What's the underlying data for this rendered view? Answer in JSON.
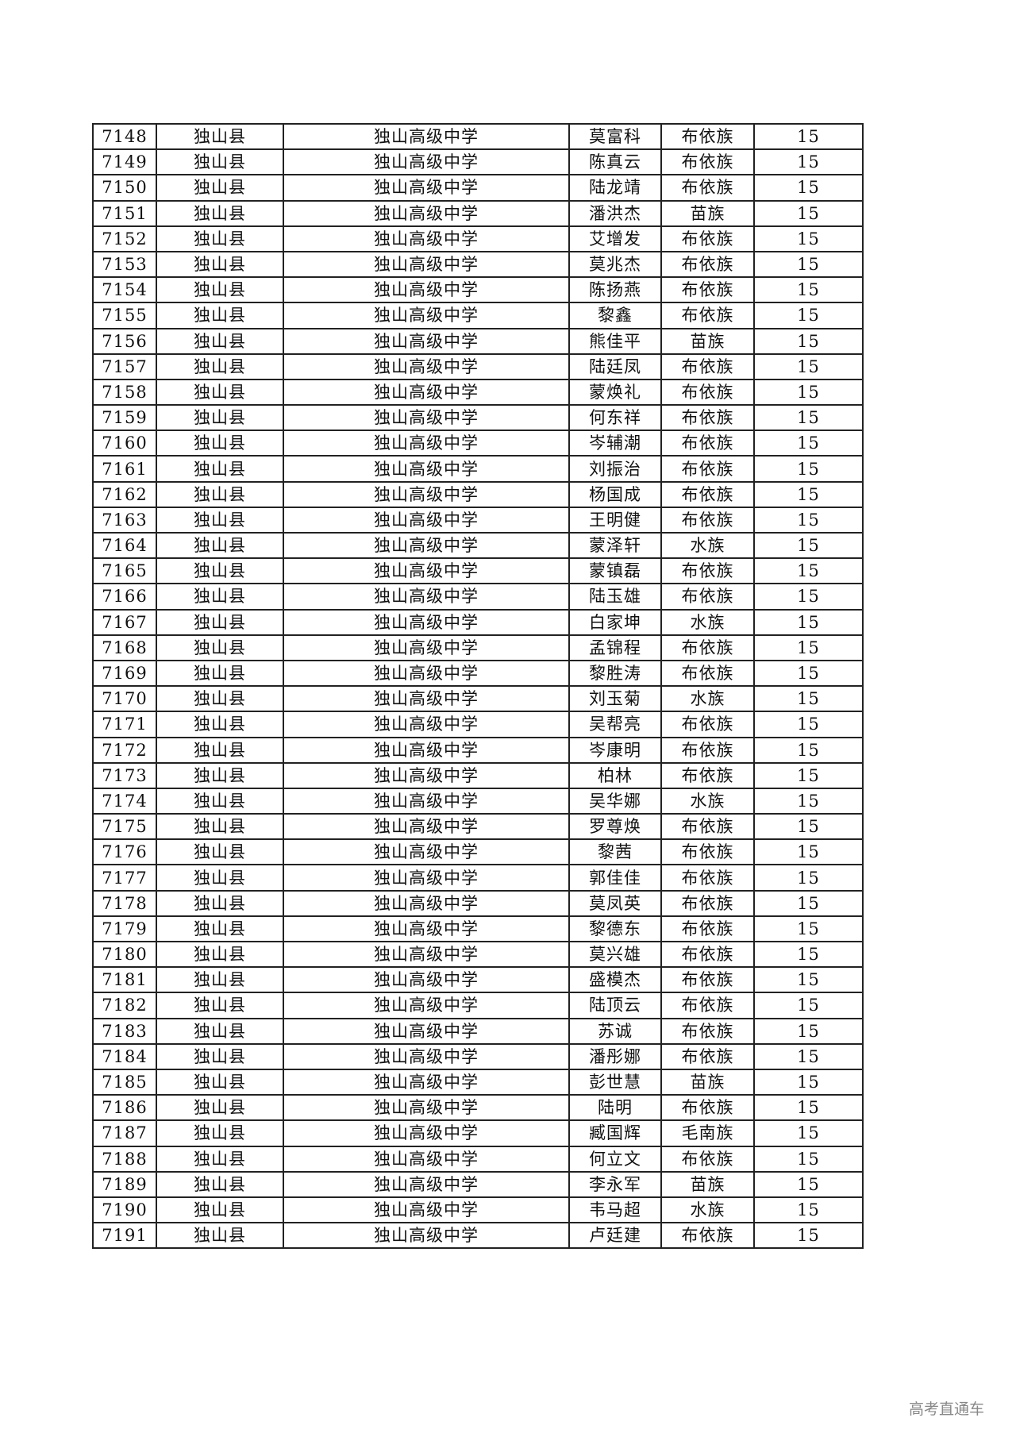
{
  "table": {
    "rows": [
      [
        "7148",
        "独山县",
        "独山高级中学",
        "莫富科",
        "布依族",
        "15"
      ],
      [
        "7149",
        "独山县",
        "独山高级中学",
        "陈真云",
        "布依族",
        "15"
      ],
      [
        "7150",
        "独山县",
        "独山高级中学",
        "陆龙靖",
        "布依族",
        "15"
      ],
      [
        "7151",
        "独山县",
        "独山高级中学",
        "潘洪杰",
        "苗族",
        "15"
      ],
      [
        "7152",
        "独山县",
        "独山高级中学",
        "艾增发",
        "布依族",
        "15"
      ],
      [
        "7153",
        "独山县",
        "独山高级中学",
        "莫兆杰",
        "布依族",
        "15"
      ],
      [
        "7154",
        "独山县",
        "独山高级中学",
        "陈扬燕",
        "布依族",
        "15"
      ],
      [
        "7155",
        "独山县",
        "独山高级中学",
        "黎鑫",
        "布依族",
        "15"
      ],
      [
        "7156",
        "独山县",
        "独山高级中学",
        "熊佳平",
        "苗族",
        "15"
      ],
      [
        "7157",
        "独山县",
        "独山高级中学",
        "陆廷凤",
        "布依族",
        "15"
      ],
      [
        "7158",
        "独山县",
        "独山高级中学",
        "蒙焕礼",
        "布依族",
        "15"
      ],
      [
        "7159",
        "独山县",
        "独山高级中学",
        "何东祥",
        "布依族",
        "15"
      ],
      [
        "7160",
        "独山县",
        "独山高级中学",
        "岑辅潮",
        "布依族",
        "15"
      ],
      [
        "7161",
        "独山县",
        "独山高级中学",
        "刘振治",
        "布依族",
        "15"
      ],
      [
        "7162",
        "独山县",
        "独山高级中学",
        "杨国成",
        "布依族",
        "15"
      ],
      [
        "7163",
        "独山县",
        "独山高级中学",
        "王明健",
        "布依族",
        "15"
      ],
      [
        "7164",
        "独山县",
        "独山高级中学",
        "蒙泽轩",
        "水族",
        "15"
      ],
      [
        "7165",
        "独山县",
        "独山高级中学",
        "蒙镇磊",
        "布依族",
        "15"
      ],
      [
        "7166",
        "独山县",
        "独山高级中学",
        "陆玉雄",
        "布依族",
        "15"
      ],
      [
        "7167",
        "独山县",
        "独山高级中学",
        "白家坤",
        "水族",
        "15"
      ],
      [
        "7168",
        "独山县",
        "独山高级中学",
        "孟锦程",
        "布依族",
        "15"
      ],
      [
        "7169",
        "独山县",
        "独山高级中学",
        "黎胜涛",
        "布依族",
        "15"
      ],
      [
        "7170",
        "独山县",
        "独山高级中学",
        "刘玉菊",
        "水族",
        "15"
      ],
      [
        "7171",
        "独山县",
        "独山高级中学",
        "吴帮亮",
        "布依族",
        "15"
      ],
      [
        "7172",
        "独山县",
        "独山高级中学",
        "岑康明",
        "布依族",
        "15"
      ],
      [
        "7173",
        "独山县",
        "独山高级中学",
        "柏林",
        "布依族",
        "15"
      ],
      [
        "7174",
        "独山县",
        "独山高级中学",
        "吴华娜",
        "水族",
        "15"
      ],
      [
        "7175",
        "独山县",
        "独山高级中学",
        "罗尊焕",
        "布依族",
        "15"
      ],
      [
        "7176",
        "独山县",
        "独山高级中学",
        "黎茜",
        "布依族",
        "15"
      ],
      [
        "7177",
        "独山县",
        "独山高级中学",
        "郭佳佳",
        "布依族",
        "15"
      ],
      [
        "7178",
        "独山县",
        "独山高级中学",
        "莫凤英",
        "布依族",
        "15"
      ],
      [
        "7179",
        "独山县",
        "独山高级中学",
        "黎德东",
        "布依族",
        "15"
      ],
      [
        "7180",
        "独山县",
        "独山高级中学",
        "莫兴雄",
        "布依族",
        "15"
      ],
      [
        "7181",
        "独山县",
        "独山高级中学",
        "盛模杰",
        "布依族",
        "15"
      ],
      [
        "7182",
        "独山县",
        "独山高级中学",
        "陆顶云",
        "布依族",
        "15"
      ],
      [
        "7183",
        "独山县",
        "独山高级中学",
        "苏诚",
        "布依族",
        "15"
      ],
      [
        "7184",
        "独山县",
        "独山高级中学",
        "潘彤娜",
        "布依族",
        "15"
      ],
      [
        "7185",
        "独山县",
        "独山高级中学",
        "彭世慧",
        "苗族",
        "15"
      ],
      [
        "7186",
        "独山县",
        "独山高级中学",
        "陆明",
        "布依族",
        "15"
      ],
      [
        "7187",
        "独山县",
        "独山高级中学",
        "臧国辉",
        "毛南族",
        "15"
      ],
      [
        "7188",
        "独山县",
        "独山高级中学",
        "何立文",
        "布依族",
        "15"
      ],
      [
        "7189",
        "独山县",
        "独山高级中学",
        "李永军",
        "苗族",
        "15"
      ],
      [
        "7190",
        "独山县",
        "独山高级中学",
        "韦马超",
        "水族",
        "15"
      ],
      [
        "7191",
        "独山县",
        "独山高级中学",
        "卢廷建",
        "布依族",
        "15"
      ]
    ]
  },
  "watermark": "高考直通车"
}
